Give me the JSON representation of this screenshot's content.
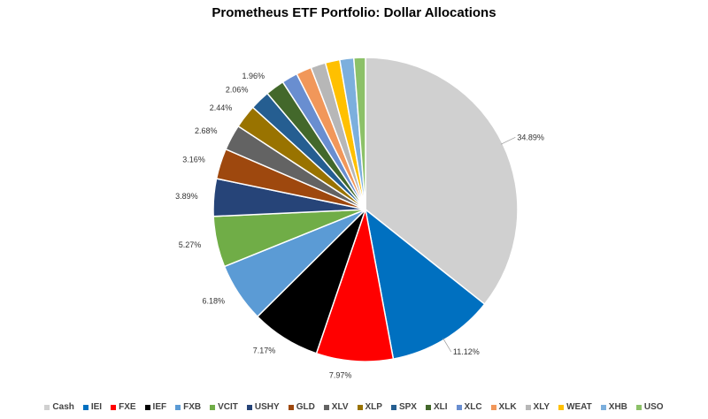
{
  "chart_data": {
    "type": "pie",
    "title": "Prometheus ETF Portfolio: Dollar Allocations",
    "legend_position": "bottom",
    "slices": [
      {
        "name": "Cash",
        "value": 34.89,
        "label": "34.89%",
        "color": "#D0D0D0"
      },
      {
        "name": "IEI",
        "value": 11.12,
        "label": "11.12%",
        "color": "#0070C0"
      },
      {
        "name": "FXE",
        "value": 7.97,
        "label": "7.97%",
        "color": "#FF0000"
      },
      {
        "name": "IEF",
        "value": 7.17,
        "label": "7.17%",
        "color": "#000000"
      },
      {
        "name": "FXB",
        "value": 6.18,
        "label": "6.18%",
        "color": "#5B9BD5"
      },
      {
        "name": "VCIT",
        "value": 5.27,
        "label": "5.27%",
        "color": "#70AD47"
      },
      {
        "name": "USHY",
        "value": 3.89,
        "label": "3.89%",
        "color": "#264478"
      },
      {
        "name": "GLD",
        "value": 3.16,
        "label": "3.16%",
        "color": "#9E480E"
      },
      {
        "name": "XLV",
        "value": 2.68,
        "label": "2.68%",
        "color": "#636363"
      },
      {
        "name": "XLP",
        "value": 2.44,
        "label": "2.44%",
        "color": "#997300"
      },
      {
        "name": "SPX",
        "value": 2.06,
        "label": "2.06%",
        "color": "#255E91"
      },
      {
        "name": "XLI",
        "value": 1.96,
        "label": "1.96%",
        "color": "#43682B"
      },
      {
        "name": "XLC",
        "value": 1.65,
        "label": "",
        "color": "#698ED0"
      },
      {
        "name": "XLK",
        "value": 1.6,
        "label": "",
        "color": "#F1975A"
      },
      {
        "name": "XLY",
        "value": 1.55,
        "label": "",
        "color": "#B7B7B7"
      },
      {
        "name": "WEAT",
        "value": 1.5,
        "label": "",
        "color": "#FFC000"
      },
      {
        "name": "XHB",
        "value": 1.45,
        "label": "",
        "color": "#7CAFDD"
      },
      {
        "name": "USO",
        "value": 1.2,
        "label": "",
        "color": "#8CC168"
      }
    ]
  }
}
